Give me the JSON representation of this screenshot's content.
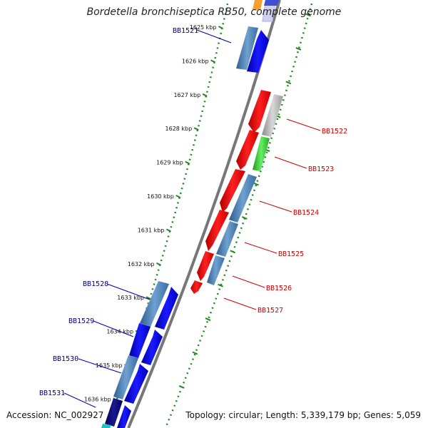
{
  "title": "Bordetella bronchiseptica RB50, complete genome",
  "footer": {
    "accession": "Accession: NC_002927",
    "stats": "Topology: circular; Length: 5,339,179 bp; Genes: 5,059"
  },
  "colors": {
    "forward_label": "#00008b",
    "reverse_label": "#cc0000",
    "backbone": "#777777",
    "tick_marks": "#228822",
    "gene_blue": "#0000ee",
    "gene_steel": "#4a82b8",
    "gene_red": "#ee0000",
    "gene_gray": "#b0b0b0",
    "gene_green": "#33cc33"
  },
  "ticks": [
    {
      "kbp": 1625,
      "label": "1625 kbp"
    },
    {
      "kbp": 1626,
      "label": "1626 kbp"
    },
    {
      "kbp": 1627,
      "label": "1627 kbp"
    },
    {
      "kbp": 1628,
      "label": "1628 kbp"
    },
    {
      "kbp": 1629,
      "label": "1629 kbp"
    },
    {
      "kbp": 1630,
      "label": "1630 kbp"
    },
    {
      "kbp": 1631,
      "label": "1631 kbp"
    },
    {
      "kbp": 1632,
      "label": "1632 kbp"
    },
    {
      "kbp": 1633,
      "label": "1633 kbp"
    },
    {
      "kbp": 1634,
      "label": "1634 kbp"
    },
    {
      "kbp": 1635,
      "label": "1635 kbp"
    },
    {
      "kbp": 1636,
      "label": "1636 kbp"
    }
  ],
  "genes": [
    {
      "name": "BB1521",
      "strand": "forward"
    },
    {
      "name": "BB1522",
      "strand": "reverse"
    },
    {
      "name": "BB1523",
      "strand": "reverse"
    },
    {
      "name": "BB1524",
      "strand": "reverse"
    },
    {
      "name": "BB1525",
      "strand": "reverse"
    },
    {
      "name": "BB1526",
      "strand": "reverse"
    },
    {
      "name": "BB1527",
      "strand": "reverse"
    },
    {
      "name": "BB1528",
      "strand": "forward"
    },
    {
      "name": "BB1529",
      "strand": "forward"
    },
    {
      "name": "BB1530",
      "strand": "forward"
    },
    {
      "name": "BB1531",
      "strand": "forward"
    }
  ]
}
